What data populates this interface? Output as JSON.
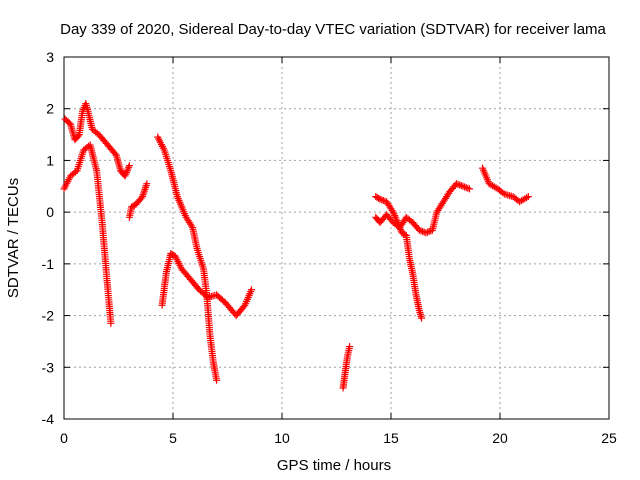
{
  "chart_data": {
    "type": "scatter",
    "title": "Day 339 of 2020, Sidereal Day-to-day VTEC variation (SDTVAR) for receiver lama",
    "xlabel": "GPS time / hours",
    "ylabel": "SDTVAR / TECUs",
    "xlim": [
      0,
      25
    ],
    "ylim": [
      -4,
      3
    ],
    "xticks": [
      0,
      5,
      10,
      15,
      20,
      25
    ],
    "yticks": [
      -4,
      -3,
      -2,
      -1,
      0,
      1,
      2,
      3
    ],
    "xtick_labels": [
      "0",
      "5",
      "10",
      "15",
      "20",
      "25"
    ],
    "ytick_labels": [
      "-4",
      "-3",
      "-2",
      "-1",
      "0",
      "1",
      "2",
      "3"
    ],
    "grid": true,
    "legend": "none",
    "marker": "+",
    "color": "#ff0000",
    "series": [
      {
        "x": [
          0.0,
          0.3,
          0.6,
          0.9,
          1.2,
          1.5,
          1.75,
          1.95,
          2.15
        ],
        "y": [
          0.45,
          0.7,
          0.8,
          1.2,
          1.3,
          0.8,
          -0.2,
          -1.2,
          -2.15
        ]
      },
      {
        "x": [
          0.05,
          0.3,
          0.5,
          0.7,
          0.85,
          1.0,
          1.1,
          1.3,
          1.6,
          2.0,
          2.4,
          2.6,
          2.8,
          3.0
        ],
        "y": [
          1.8,
          1.7,
          1.4,
          1.5,
          1.95,
          2.1,
          1.95,
          1.6,
          1.5,
          1.3,
          1.1,
          0.8,
          0.7,
          0.9
        ]
      },
      {
        "x": [
          3.0,
          3.1,
          3.3,
          3.6,
          3.8
        ],
        "y": [
          -0.1,
          0.1,
          0.15,
          0.3,
          0.55
        ]
      },
      {
        "x": [
          4.3,
          4.6,
          4.9,
          5.2,
          5.6,
          5.9,
          6.1,
          6.4,
          6.55,
          6.7,
          6.85,
          7.0
        ],
        "y": [
          1.45,
          1.2,
          0.8,
          0.3,
          -0.1,
          -0.3,
          -0.7,
          -1.1,
          -1.6,
          -2.4,
          -2.9,
          -3.25
        ]
      },
      {
        "x": [
          4.5,
          4.7,
          4.9,
          5.1,
          5.4,
          5.8,
          6.2,
          6.6,
          7.0,
          7.4,
          7.9,
          8.3,
          8.6
        ],
        "y": [
          -1.8,
          -1.15,
          -0.8,
          -0.85,
          -1.1,
          -1.3,
          -1.5,
          -1.65,
          -1.6,
          -1.75,
          -2.0,
          -1.8,
          -1.5
        ]
      },
      {
        "x": [
          12.8,
          12.9,
          13.0,
          13.1
        ],
        "y": [
          -3.4,
          -3.1,
          -2.8,
          -2.6
        ]
      },
      {
        "x": [
          14.3,
          14.5,
          14.8,
          15.1,
          15.3,
          15.5,
          15.7,
          15.85,
          16.0,
          16.15,
          16.3,
          16.4
        ],
        "y": [
          0.3,
          0.25,
          0.2,
          0.0,
          -0.2,
          -0.4,
          -0.45,
          -0.9,
          -1.2,
          -1.6,
          -1.9,
          -2.05
        ]
      },
      {
        "x": [
          14.3,
          14.5,
          14.8,
          15.1,
          15.4,
          15.7,
          16.0,
          16.3,
          16.6,
          16.9,
          17.1,
          17.4,
          17.7,
          18.0,
          18.3,
          18.6
        ],
        "y": [
          -0.1,
          -0.2,
          -0.05,
          -0.2,
          -0.3,
          -0.1,
          -0.2,
          -0.35,
          -0.4,
          -0.35,
          0.0,
          0.2,
          0.4,
          0.55,
          0.5,
          0.45
        ]
      },
      {
        "x": [
          19.2,
          19.5,
          19.9,
          20.2,
          20.6,
          20.9,
          21.3
        ],
        "y": [
          0.85,
          0.55,
          0.45,
          0.35,
          0.3,
          0.2,
          0.3
        ]
      }
    ]
  }
}
